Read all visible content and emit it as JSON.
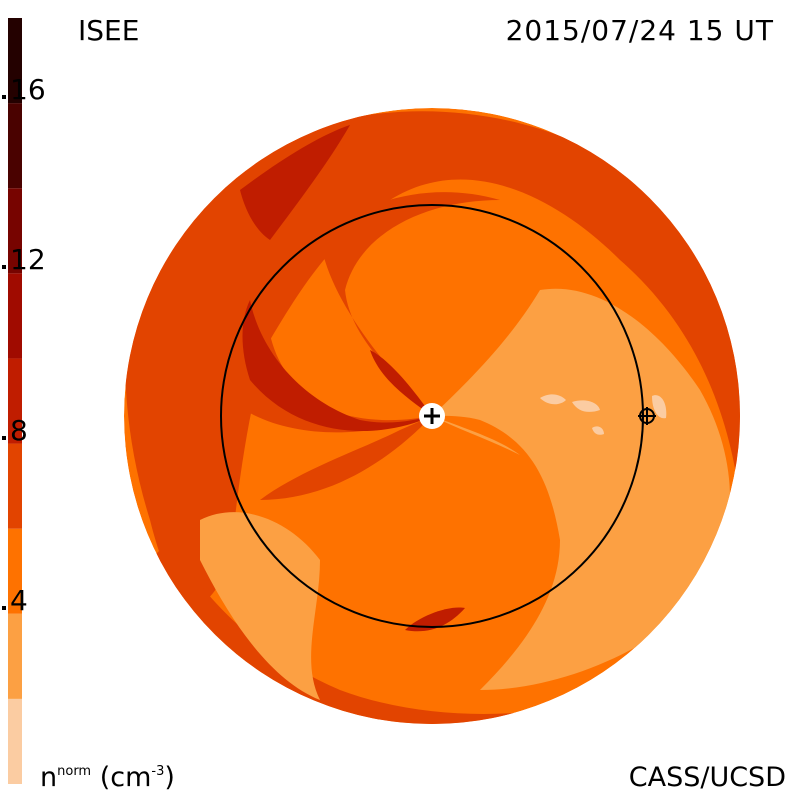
{
  "header": {
    "org": "ISEE",
    "datetime": "2015/07/24 15 UT"
  },
  "footer": {
    "unit_main": "n",
    "unit_sup": "norm",
    "unit_paren_open": "(cm",
    "unit_exp": "-3",
    "unit_paren_close": ")",
    "credit": "CASS/UCSD"
  },
  "colorbar": {
    "ticks": [
      {
        "label": "16",
        "value": 16
      },
      {
        "label": "12",
        "value": 12
      },
      {
        "label": "8",
        "value": 8
      },
      {
        "label": "4",
        "value": 4
      }
    ],
    "range": [
      0,
      18
    ],
    "bands": [
      {
        "from": 0,
        "to": 2,
        "color": "#fbcca2"
      },
      {
        "from": 2,
        "to": 4,
        "color": "#fca043"
      },
      {
        "from": 4,
        "to": 6,
        "color": "#fe7200"
      },
      {
        "from": 6,
        "to": 8,
        "color": "#e24400"
      },
      {
        "from": 8,
        "to": 10,
        "color": "#c01d00"
      },
      {
        "from": 10,
        "to": 12,
        "color": "#a00b00"
      },
      {
        "from": 12,
        "to": 14,
        "color": "#770400"
      },
      {
        "from": 14,
        "to": 16,
        "color": "#4a0200"
      },
      {
        "from": 16,
        "to": 18,
        "color": "#240100"
      }
    ]
  },
  "map": {
    "sun_symbol": "+",
    "earth_symbol": "⊕"
  },
  "colors": {
    "c0": "#fbcca2",
    "c1": "#fca043",
    "c2": "#fe7200",
    "c3": "#e24400",
    "c4": "#c01d00",
    "orbit": "#000000"
  }
}
